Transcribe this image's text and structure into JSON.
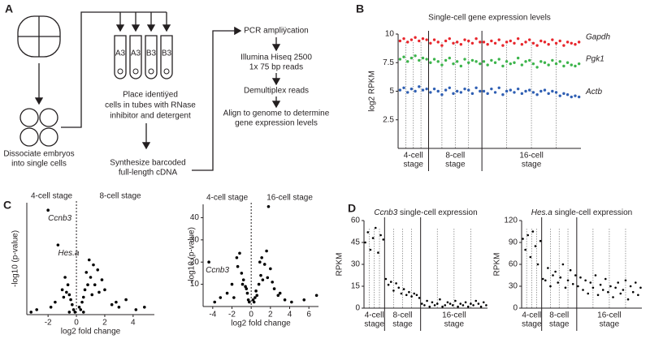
{
  "diagram": {
    "panel": "A",
    "tube_labels": [
      "A3",
      "A3",
      "B3",
      "B3"
    ],
    "dissociate": [
      "Dissociate embryos",
      "into single cells"
    ],
    "place": [
      "Place identiÿed",
      "cells in tubes with RNase",
      "inhibitor and detergent"
    ],
    "synthesize": [
      "Synthesize barcoded",
      "full-length cDNA"
    ],
    "pcr": "PCR ampliÿcation",
    "sequencing": [
      "Illumina Hiseq 2500",
      "1x 75 bp reads"
    ],
    "demultiplex": "Demultiplex reads",
    "align": [
      "Align to genome to determine",
      "gene expression levels"
    ]
  },
  "chart_data": [
    {
      "type": "strip",
      "panel": "B",
      "title": "Single-cell gene expression levels",
      "y_label": "log2 RPKM",
      "ylim": [
        0,
        10
      ],
      "yticks": [
        2.5,
        5,
        7.5,
        10
      ],
      "series": [
        {
          "name": "Gapdh",
          "color": "#e8262c"
        },
        {
          "name": "Pgk1",
          "color": "#3cb44b"
        },
        {
          "name": "Actb",
          "color": "#2f5fb3"
        }
      ],
      "groups": [
        {
          "label": [
            "4-cell",
            "stage"
          ],
          "series": [
            {
              "values": [
                9.4,
                9.6,
                9.3,
                9.5,
                9.7,
                9.4,
                9.6,
                9.5
              ]
            },
            {
              "values": [
                7.8,
                8.0,
                7.6,
                7.9,
                8.1,
                7.7,
                7.9,
                7.8
              ]
            },
            {
              "values": [
                5.1,
                5.3,
                4.9,
                5.2,
                5.0,
                5.4,
                5.1,
                5.2
              ]
            }
          ]
        },
        {
          "label": [
            "8-cell",
            "stage"
          ],
          "series": [
            {
              "values": [
                9.2,
                9.5,
                9.3,
                9.0,
                9.4,
                9.6,
                9.2,
                9.3,
                9.1,
                9.5,
                9.4,
                9.2,
                9.6,
                9.3
              ]
            },
            {
              "values": [
                7.5,
                7.8,
                7.6,
                7.3,
                7.7,
                7.9,
                7.4,
                7.6,
                7.2,
                7.8,
                7.5,
                7.7,
                7.6,
                7.4
              ]
            },
            {
              "values": [
                4.9,
                5.2,
                5.0,
                4.7,
                5.1,
                5.3,
                4.8,
                5.0,
                4.9,
                5.2,
                5.1,
                4.8,
                5.3,
                5.0
              ]
            }
          ]
        },
        {
          "label": [
            "16-cell",
            "stage"
          ],
          "series": [
            {
              "values": [
                9.3,
                9.1,
                9.4,
                9.2,
                9.5,
                9.0,
                9.3,
                9.4,
                9.2,
                9.6,
                9.1,
                9.3,
                9.5,
                9.2,
                9.0,
                9.4,
                9.3,
                9.1,
                9.5,
                9.2,
                9.4,
                9.0,
                9.3,
                9.2,
                9.1,
                9.3
              ]
            },
            {
              "values": [
                7.6,
                7.3,
                7.7,
                7.5,
                7.8,
                7.2,
                7.6,
                7.4,
                7.5,
                7.9,
                7.3,
                7.6,
                7.7,
                7.4,
                7.1,
                7.6,
                7.5,
                7.3,
                7.7,
                7.4,
                7.6,
                7.2,
                7.5,
                7.3,
                7.2,
                7.4
              ]
            },
            {
              "values": [
                5.0,
                4.8,
                5.2,
                4.9,
                5.3,
                4.7,
                5.0,
                5.1,
                4.9,
                5.2,
                4.8,
                5.0,
                5.1,
                4.9,
                4.7,
                5.0,
                5.1,
                4.8,
                5.0,
                4.9,
                4.6,
                4.8,
                4.7,
                4.5,
                4.6,
                4.5
              ]
            }
          ]
        }
      ]
    },
    {
      "type": "scatter",
      "panel": "C",
      "x_label": "log2 fold change",
      "y_label": "-log10 (p-value)",
      "stage_labels": [
        "4-cell stage",
        "8-cell stage"
      ],
      "annotations": [
        "Ccnb3",
        "Hes.a"
      ],
      "xlim": [
        -3.5,
        5.5
      ],
      "xticks": [
        -2,
        0,
        2,
        4
      ],
      "ylim": [
        0,
        45
      ],
      "color": "#000000",
      "x": [
        -2.0,
        -1.3,
        -0.8,
        -0.5,
        -0.3,
        -0.6,
        -1.0,
        -0.4,
        -0.2,
        -0.7,
        -1.5,
        -0.9,
        -0.1,
        0.2,
        0.5,
        0.8,
        1.0,
        1.2,
        0.6,
        0.4,
        1.5,
        1.8,
        2.0,
        0.9,
        1.1,
        0.3,
        0.7,
        1.3,
        2.5,
        3.0,
        3.5,
        4.2,
        4.8,
        -2.8,
        -3.2,
        2.8,
        1.6,
        0.5,
        -0.5,
        -1.8
      ],
      "values": [
        42,
        28,
        15,
        8,
        4,
        12,
        10,
        6,
        2,
        9,
        5,
        7,
        1,
        3,
        7,
        12,
        15,
        20,
        10,
        5,
        18,
        14,
        10,
        22,
        8,
        2,
        17,
        12,
        4,
        3,
        6,
        2,
        3,
        2,
        1,
        5,
        9,
        1,
        1,
        3
      ]
    },
    {
      "type": "scatter",
      "x_label": "log2 fold change",
      "y_label": "-log10 (p-value)",
      "stage_labels": [
        "4-cell stage",
        "16-cell stage"
      ],
      "annotations": [
        "Ccnb3"
      ],
      "xlim": [
        -5,
        7
      ],
      "xticks": [
        -4,
        -2,
        0,
        2,
        4,
        6
      ],
      "ylim": [
        0,
        46
      ],
      "yticks": [
        10,
        20,
        30,
        40
      ],
      "color": "#000000",
      "x": [
        -4.4,
        1.8,
        -1.5,
        -1.0,
        -0.5,
        -0.3,
        -0.8,
        -1.2,
        -0.2,
        -2.0,
        -2.5,
        -1.8,
        -0.6,
        0.2,
        0.5,
        0.8,
        1.0,
        1.4,
        1.6,
        2.0,
        0.6,
        0.3,
        1.2,
        2.4,
        2.8,
        3.5,
        4.2,
        6.8,
        5.5,
        -3.2,
        -3.8,
        0.9,
        1.1,
        -0.4,
        0.4,
        2.2,
        -1.4,
        3.0,
        -0.9,
        1.7
      ],
      "values": [
        20,
        45,
        22,
        15,
        8,
        3,
        12,
        24,
        2,
        10,
        6,
        4,
        9,
        3,
        7,
        10,
        14,
        19,
        25,
        17,
        5,
        2,
        12,
        8,
        5,
        3,
        2,
        5,
        3,
        4,
        2,
        20,
        22,
        6,
        4,
        11,
        18,
        6,
        10,
        13
      ]
    },
    {
      "type": "strip",
      "panel": "D",
      "title_gene": "Ccnb3",
      "title": "single-cell expression",
      "y_label": "RPKM",
      "ylim": [
        0,
        60
      ],
      "yticks": [
        0,
        15,
        30,
        45,
        60
      ],
      "color": "#000000",
      "groups": [
        {
          "label": [
            "4-cell",
            "stage"
          ],
          "values": [
            45,
            52,
            40,
            48,
            55,
            38,
            50,
            47
          ]
        },
        {
          "label": [
            "8-cell",
            "stage"
          ],
          "values": [
            20,
            16,
            18,
            12,
            17,
            14,
            10,
            13,
            9,
            11,
            8,
            10,
            9,
            7
          ]
        },
        {
          "label": [
            "16-cell",
            "stage"
          ],
          "values": [
            3,
            2,
            5,
            1,
            4,
            2,
            3,
            6,
            1,
            2,
            4,
            3,
            2,
            5,
            1,
            3,
            2,
            4,
            1,
            3,
            2,
            5,
            3,
            1,
            4,
            2
          ]
        }
      ]
    },
    {
      "type": "strip",
      "title_gene": "Hes.a",
      "title": "single-cell expression",
      "y_label": "RPKM",
      "ylim": [
        0,
        120
      ],
      "yticks": [
        0,
        30,
        60,
        90,
        120
      ],
      "color": "#000000",
      "groups": [
        {
          "label": [
            "4-cell",
            "stage"
          ],
          "values": [
            95,
            80,
            100,
            70,
            105,
            85,
            60,
            92
          ]
        },
        {
          "label": [
            "8-cell",
            "stage"
          ],
          "values": [
            40,
            38,
            55,
            30,
            45,
            50,
            35,
            42,
            60,
            28,
            38,
            52,
            33,
            45
          ]
        },
        {
          "label": [
            "16-cell",
            "stage"
          ],
          "values": [
            30,
            42,
            25,
            38,
            20,
            35,
            28,
            45,
            18,
            32,
            25,
            40,
            22,
            30,
            15,
            28,
            35,
            20,
            25,
            38,
            12,
            30,
            22,
            35,
            18,
            28
          ]
        }
      ]
    }
  ]
}
